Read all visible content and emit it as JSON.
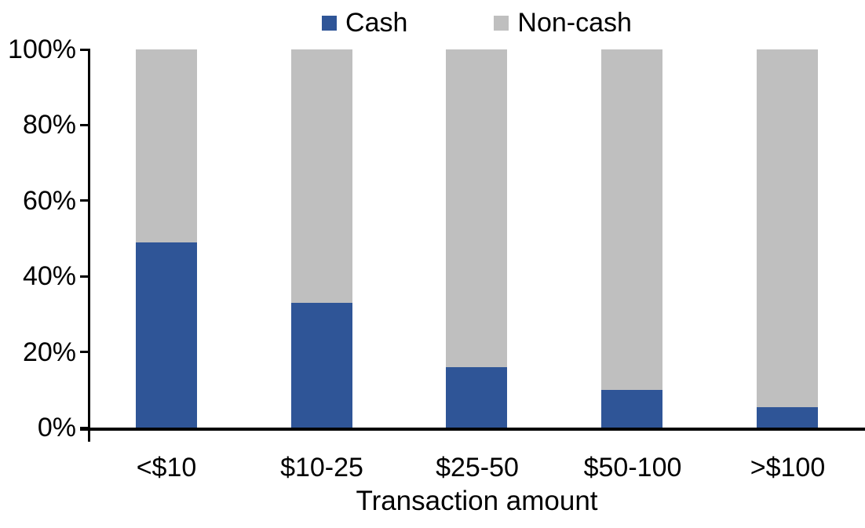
{
  "chart_data": {
    "type": "bar",
    "subtype": "stacked-100-percent-column",
    "title": "",
    "xlabel": "Transaction amount",
    "ylabel": "",
    "categories": [
      "<$10",
      "$10-25",
      "$25-50",
      "$50-100",
      ">$100"
    ],
    "series": [
      {
        "name": "Cash",
        "color": "#2F5597",
        "values": [
          49,
          33,
          16,
          10,
          5.5
        ]
      },
      {
        "name": "Non-cash",
        "color": "#BFBFBF",
        "values": [
          51,
          67,
          84,
          90,
          94.5
        ]
      }
    ],
    "ylim": [
      0,
      100
    ],
    "y_ticks": [
      "0%",
      "20%",
      "40%",
      "60%",
      "80%",
      "100%"
    ],
    "grid": false,
    "legend_position": "top-center",
    "axis_color": "#000000",
    "background_color": "#FFFFFF"
  }
}
